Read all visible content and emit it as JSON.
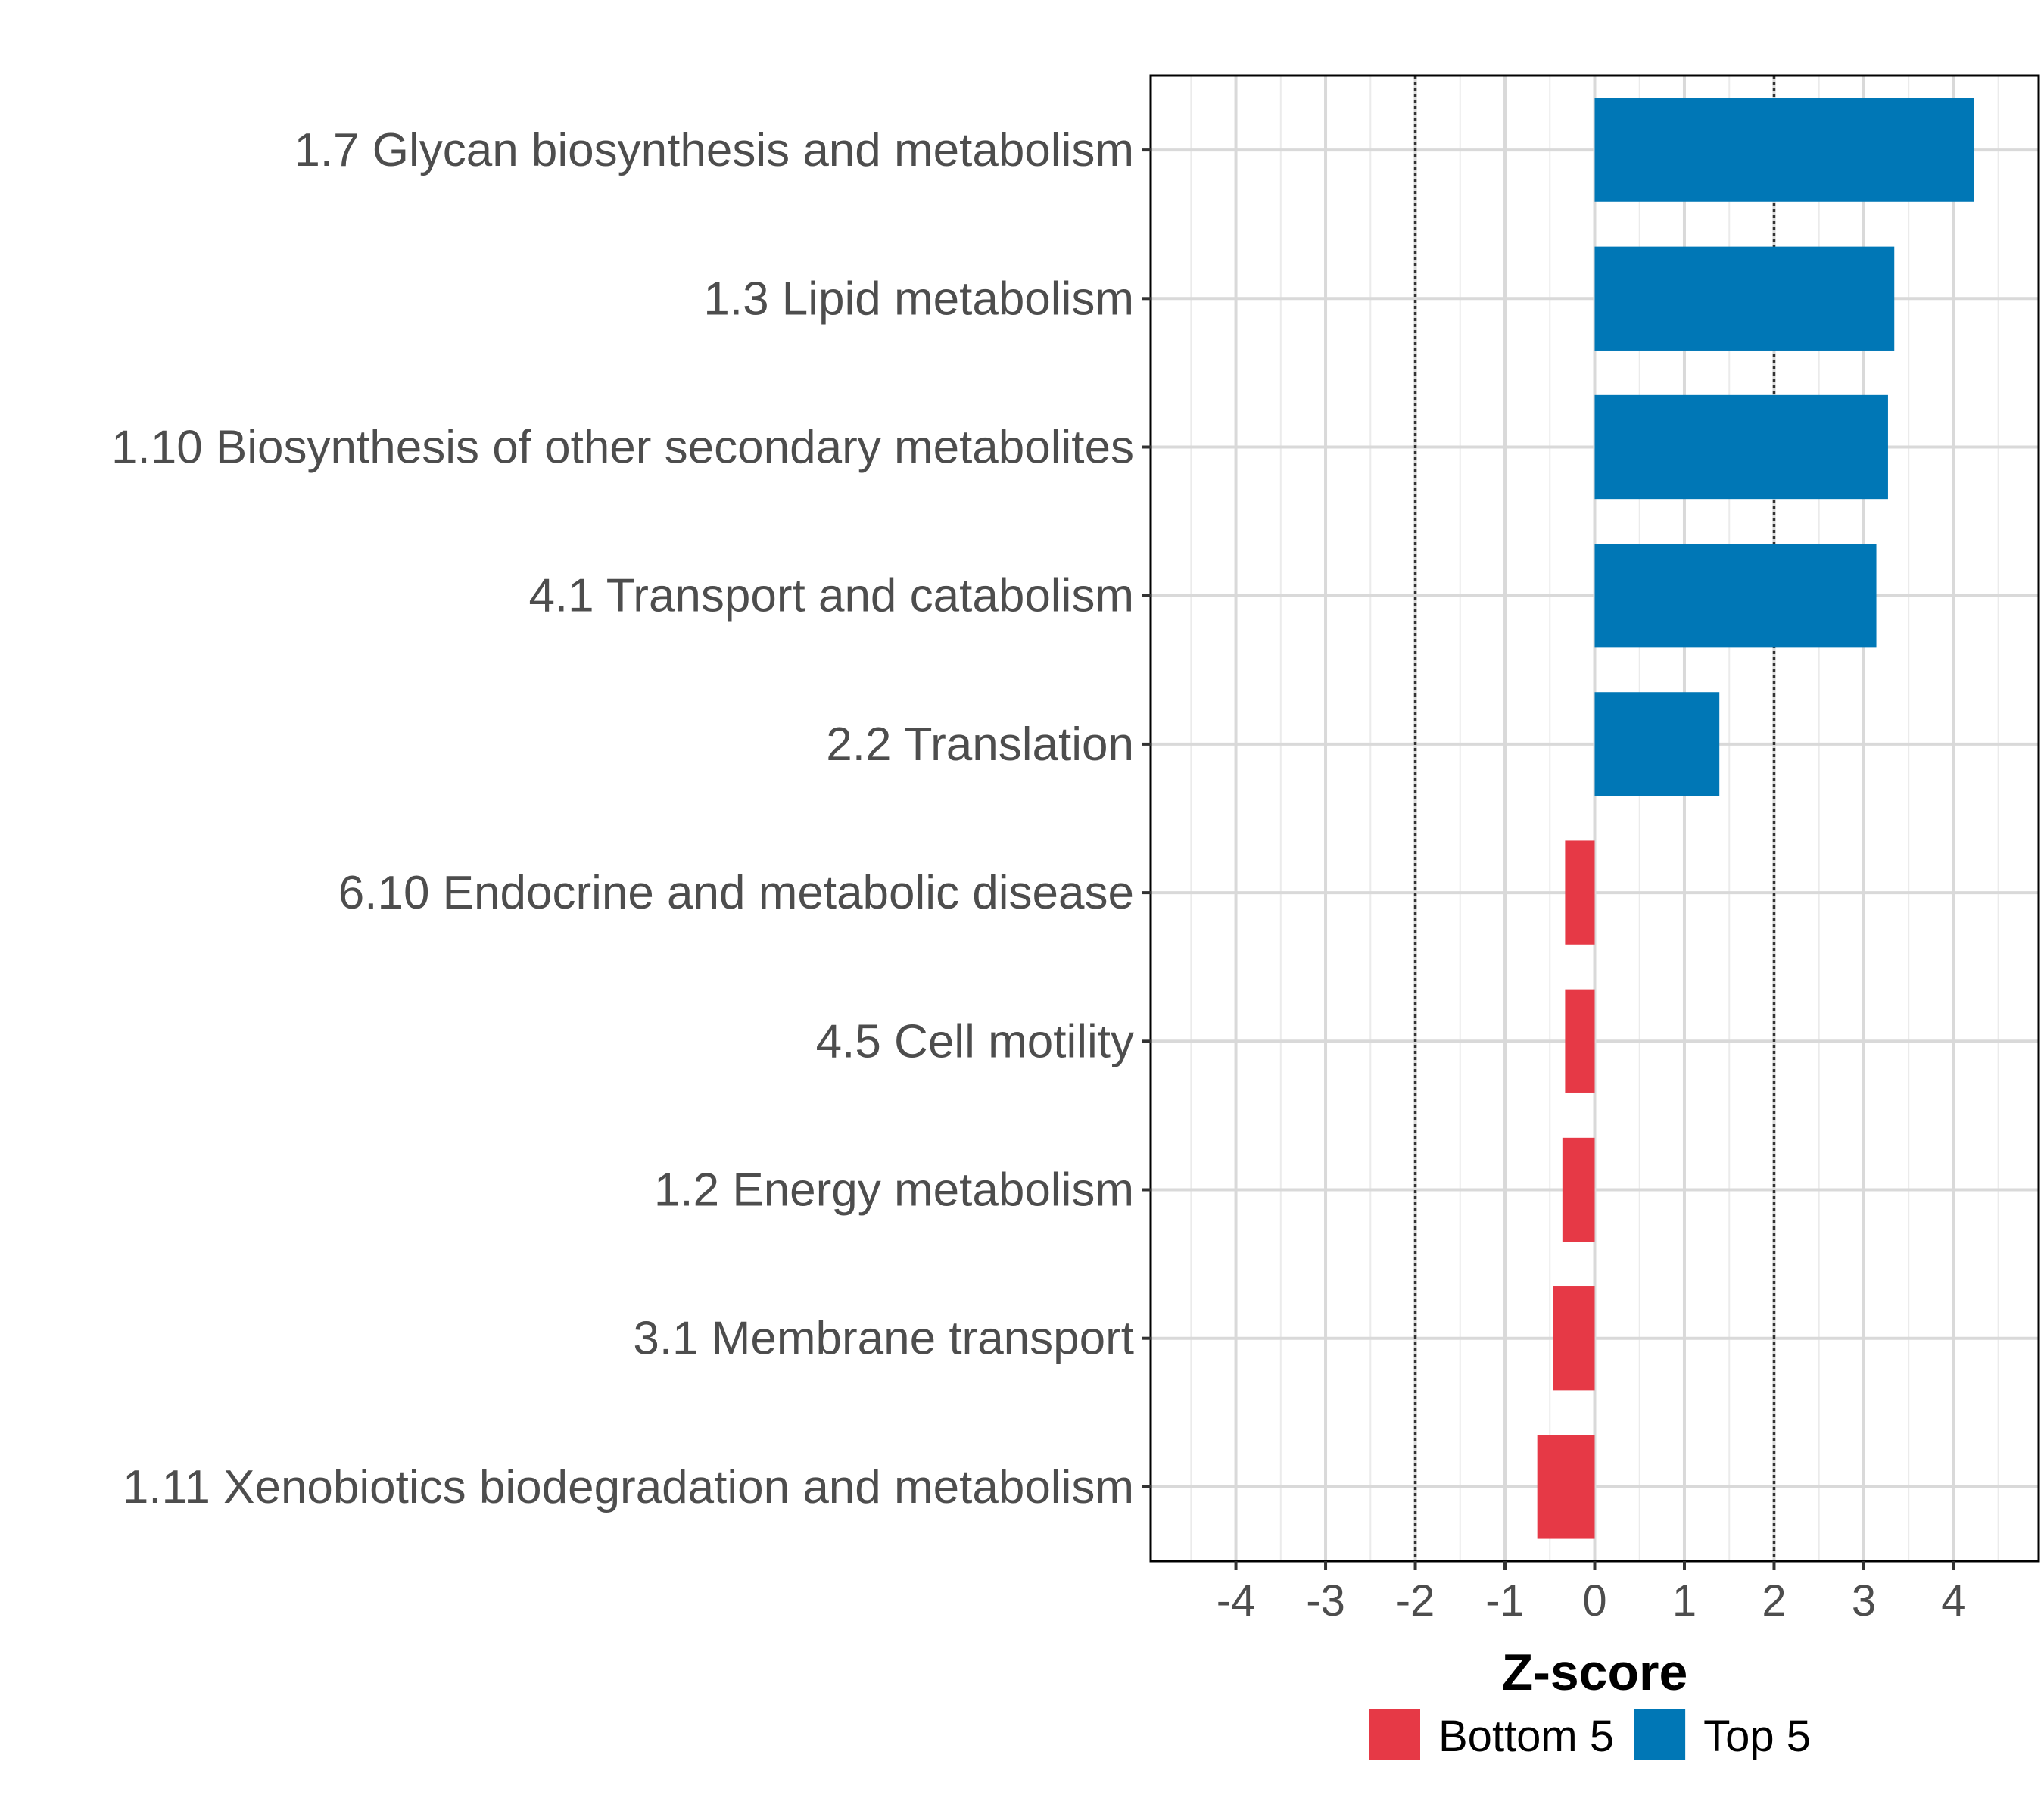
{
  "chart_data": {
    "type": "bar",
    "orientation": "horizontal",
    "categories": [
      "1.7 Glycan biosynthesis and metabolism",
      "1.3 Lipid metabolism",
      "1.10 Biosynthesis of other secondary metabolites",
      "4.1 Transport and catabolism",
      "2.2 Translation",
      "6.10 Endocrine and metabolic disease",
      "4.5 Cell motility",
      "1.2 Energy metabolism",
      "3.1 Membrane transport",
      "1.11 Xenobiotics biodegradation and metabolism"
    ],
    "values": [
      4.23,
      3.34,
      3.27,
      3.14,
      1.39,
      -0.33,
      -0.33,
      -0.36,
      -0.46,
      -0.64
    ],
    "groups": [
      "Top 5",
      "Top 5",
      "Top 5",
      "Top 5",
      "Top 5",
      "Bottom 5",
      "Bottom 5",
      "Bottom 5",
      "Bottom 5",
      "Bottom 5"
    ],
    "xlabel": "Z-score",
    "ylabel": "",
    "xlim": [
      -4.95,
      4.95
    ],
    "xticks": [
      "-4",
      "-3",
      "-2",
      "-1",
      "0",
      "1",
      "2",
      "3",
      "4"
    ],
    "reference_lines": [
      -2,
      2
    ],
    "grid": true,
    "legend": {
      "position": "bottom",
      "items": [
        {
          "label": "Bottom 5",
          "color": "#e63946"
        },
        {
          "label": "Top 5",
          "color": "#0077b6"
        }
      ]
    },
    "colors": {
      "Top 5": "#0077b6",
      "Bottom 5": "#e63946"
    }
  }
}
